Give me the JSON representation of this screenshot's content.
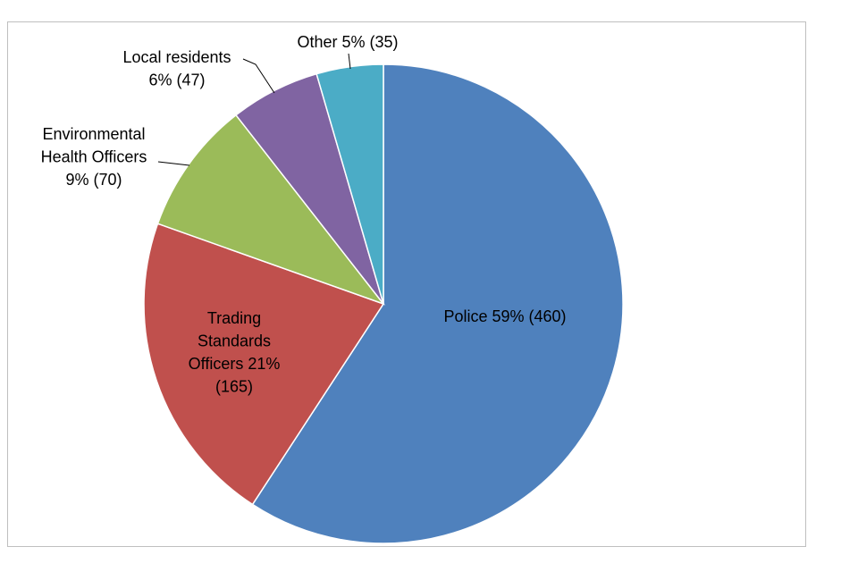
{
  "chart_data": {
    "type": "pie",
    "title": "",
    "slices": [
      {
        "name": "Police",
        "percent": 59,
        "count": 460,
        "color": "#4F81BD",
        "label_lines": [
          "Police 59% (460)"
        ]
      },
      {
        "name": "Trading Standards Officers",
        "percent": 21,
        "count": 165,
        "color": "#C0504D",
        "label_lines": [
          "Trading",
          "Standards",
          "Officers 21%",
          "(165)"
        ]
      },
      {
        "name": "Environmental Health Officers",
        "percent": 9,
        "count": 70,
        "color": "#9BBB59",
        "label_lines": [
          "Environmental",
          "Health Officers",
          "9% (70)"
        ]
      },
      {
        "name": "Local residents",
        "percent": 6,
        "count": 47,
        "color": "#8064A2",
        "label_lines": [
          "Local residents",
          "6% (47)"
        ]
      },
      {
        "name": "Other",
        "percent": 5,
        "count": 35,
        "color": "#4BACC6",
        "label_lines": [
          "Other 5% (35)"
        ]
      }
    ],
    "start_angle_deg": 0,
    "direction": "clockwise",
    "legend": "none"
  }
}
